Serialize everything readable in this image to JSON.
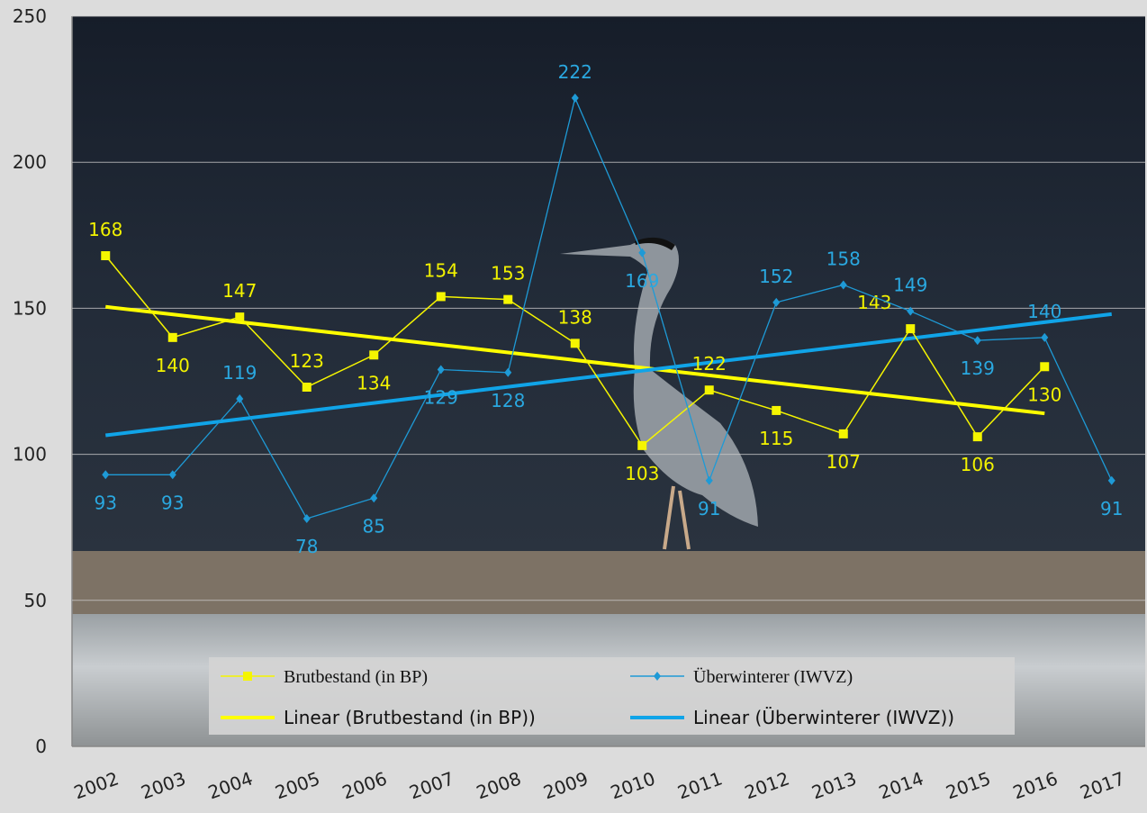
{
  "chart_data": {
    "type": "line",
    "categories": [
      "2002",
      "2003",
      "2004",
      "2005",
      "2006",
      "2007",
      "2008",
      "2009",
      "2010",
      "2011",
      "2012",
      "2013",
      "2014",
      "2015",
      "2016",
      "2017"
    ],
    "series": [
      {
        "name": "Brutbestand (in BP)",
        "color": "#f5f500",
        "marker": "square",
        "values": [
          168,
          140,
          147,
          123,
          134,
          154,
          153,
          138,
          103,
          122,
          115,
          107,
          143,
          106,
          130,
          null
        ]
      },
      {
        "name": "Überwinterer (IWVZ)",
        "color": "#1e9ad6",
        "marker": "diamond",
        "values": [
          93,
          93,
          119,
          78,
          85,
          129,
          128,
          222,
          169,
          91,
          152,
          158,
          149,
          139,
          140,
          91
        ]
      }
    ],
    "trendlines": [
      {
        "name": "Linear (Brutbestand (in BP))",
        "color": "#ffff00",
        "start": 150.5,
        "end": 114,
        "first": 0,
        "last": 14
      },
      {
        "name": "Linear (Überwinterer (IWVZ))",
        "color": "#10a4e8",
        "start": 106.5,
        "end": 148,
        "first": 0,
        "last": 15
      }
    ],
    "ylim": [
      0,
      250
    ],
    "yticks": [
      0,
      50,
      100,
      150,
      200,
      250
    ],
    "grid": true
  }
}
